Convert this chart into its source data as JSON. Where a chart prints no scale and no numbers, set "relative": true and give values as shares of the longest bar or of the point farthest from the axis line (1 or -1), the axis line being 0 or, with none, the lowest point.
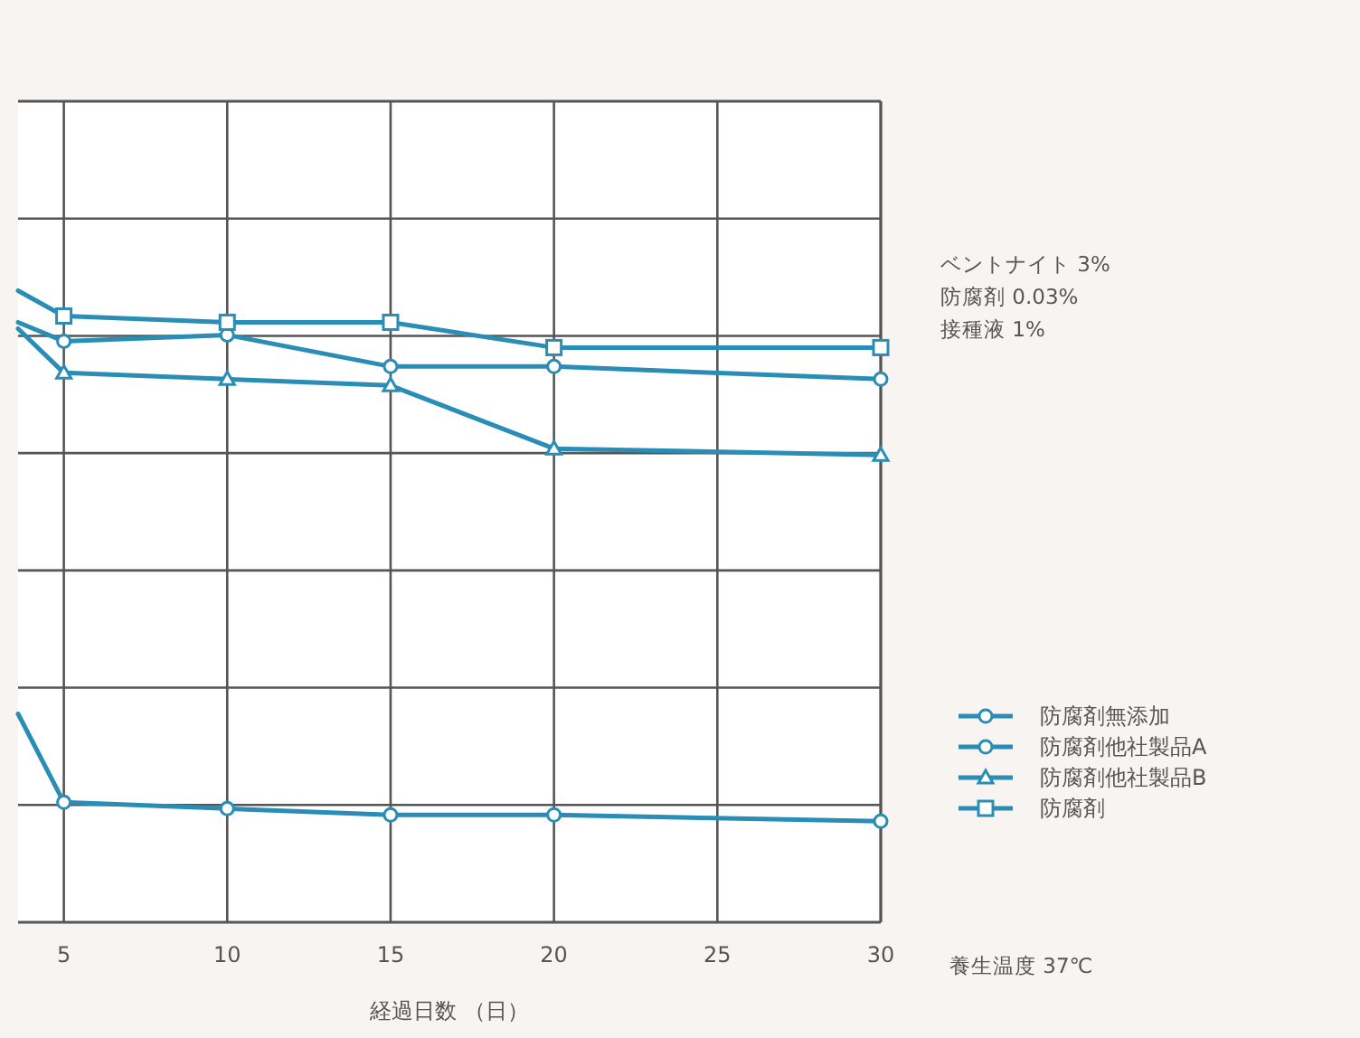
{
  "chart_data": {
    "type": "line",
    "relative": true,
    "xlabel": "経過日数 （日）",
    "x": [
      3.6,
      5,
      10,
      15,
      20,
      30
    ],
    "xlim": [
      3.6,
      30
    ],
    "xticks": [
      5,
      10,
      15,
      20,
      25,
      30
    ],
    "grid": true,
    "legend": "right",
    "line_style": "solid",
    "series": [
      {
        "name": "防腐剤無添加",
        "color": "#2a8db5",
        "marker": "circle",
        "values": [
          0.33,
          0.19,
          0.18,
          0.17,
          0.17,
          0.16
        ]
      },
      {
        "name": "防腐剤他社製品A",
        "color": "#2a8db5",
        "marker": "circle",
        "values": [
          0.95,
          0.92,
          0.93,
          0.88,
          0.88,
          0.86
        ]
      },
      {
        "name": "防腐剤他社製品B",
        "color": "#2a8db5",
        "marker": "triangle",
        "values": [
          0.94,
          0.87,
          0.86,
          0.85,
          0.75,
          0.74
        ]
      },
      {
        "name": "防腐剤",
        "color": "#2a8db5",
        "marker": "square",
        "values": [
          1.0,
          0.96,
          0.95,
          0.95,
          0.91,
          0.91
        ]
      }
    ],
    "annotations": [
      "ベントナイト 3%",
      "防腐剤 0.03%",
      "接種液 1%",
      "養生温度 37℃"
    ]
  }
}
